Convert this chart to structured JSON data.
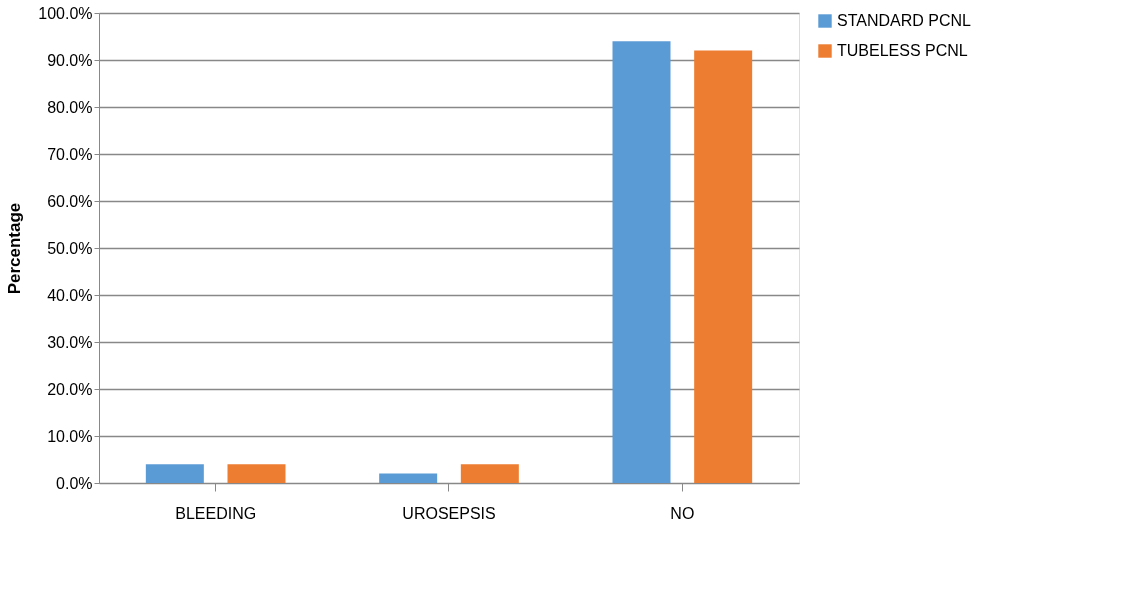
{
  "chart_data": {
    "type": "bar",
    "ylabel": "Percentage",
    "categories": [
      "BLEEDING",
      "UROSEPSIS",
      "NO"
    ],
    "series": [
      {
        "name": "STANDARD PCNL",
        "color": "#5b9bd5",
        "values": [
          4,
          2,
          94
        ]
      },
      {
        "name": "TUBELESS PCNL",
        "color": "#ed7d31",
        "values": [
          4,
          4,
          92
        ]
      }
    ],
    "ylim": [
      0,
      100
    ],
    "yticks": [
      {
        "value": 0,
        "label": "0.0%"
      },
      {
        "value": 10,
        "label": "10.0%"
      },
      {
        "value": 20,
        "label": "20.0%"
      },
      {
        "value": 30,
        "label": "30.0%"
      },
      {
        "value": 40,
        "label": "40.0%"
      },
      {
        "value": 50,
        "label": "50.0%"
      },
      {
        "value": 60,
        "label": "60.0%"
      },
      {
        "value": 70,
        "label": "70.0%"
      },
      {
        "value": 80,
        "label": "80.0%"
      },
      {
        "value": 90,
        "label": "90.0%"
      },
      {
        "value": 100,
        "label": "100.0%"
      }
    ],
    "grid": "y",
    "legend": "right"
  }
}
